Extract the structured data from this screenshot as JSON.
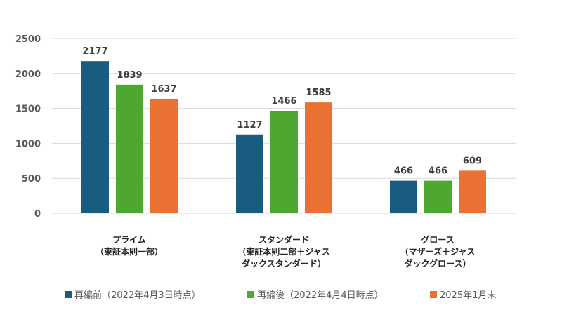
{
  "chart_data": {
    "type": "bar",
    "categories": [
      [
        "プライム",
        "（東証本則一部）"
      ],
      [
        "スタンダード",
        "（東証本則二部＋ジャス",
        "ダックスタンダード）"
      ],
      [
        "グロース",
        "（マザーズ＋ジャス",
        "ダックグロース）"
      ]
    ],
    "series": [
      {
        "name": "再編前（2022年4月3日時点）",
        "values": [
          2177,
          1127,
          466
        ],
        "color": "#1a5b80"
      },
      {
        "name": "再編後（2022年4月4日時点）",
        "values": [
          1839,
          1466,
          466
        ],
        "color": "#4ea72e"
      },
      {
        "name": "2025年1月末",
        "values": [
          1637,
          1585,
          609
        ],
        "color": "#e97132"
      }
    ],
    "ylim": [
      0,
      2500
    ],
    "yticks": [
      "0",
      "500",
      "1000",
      "1500",
      "2000",
      "2500"
    ],
    "grid": true,
    "legend_position": "bottom"
  }
}
